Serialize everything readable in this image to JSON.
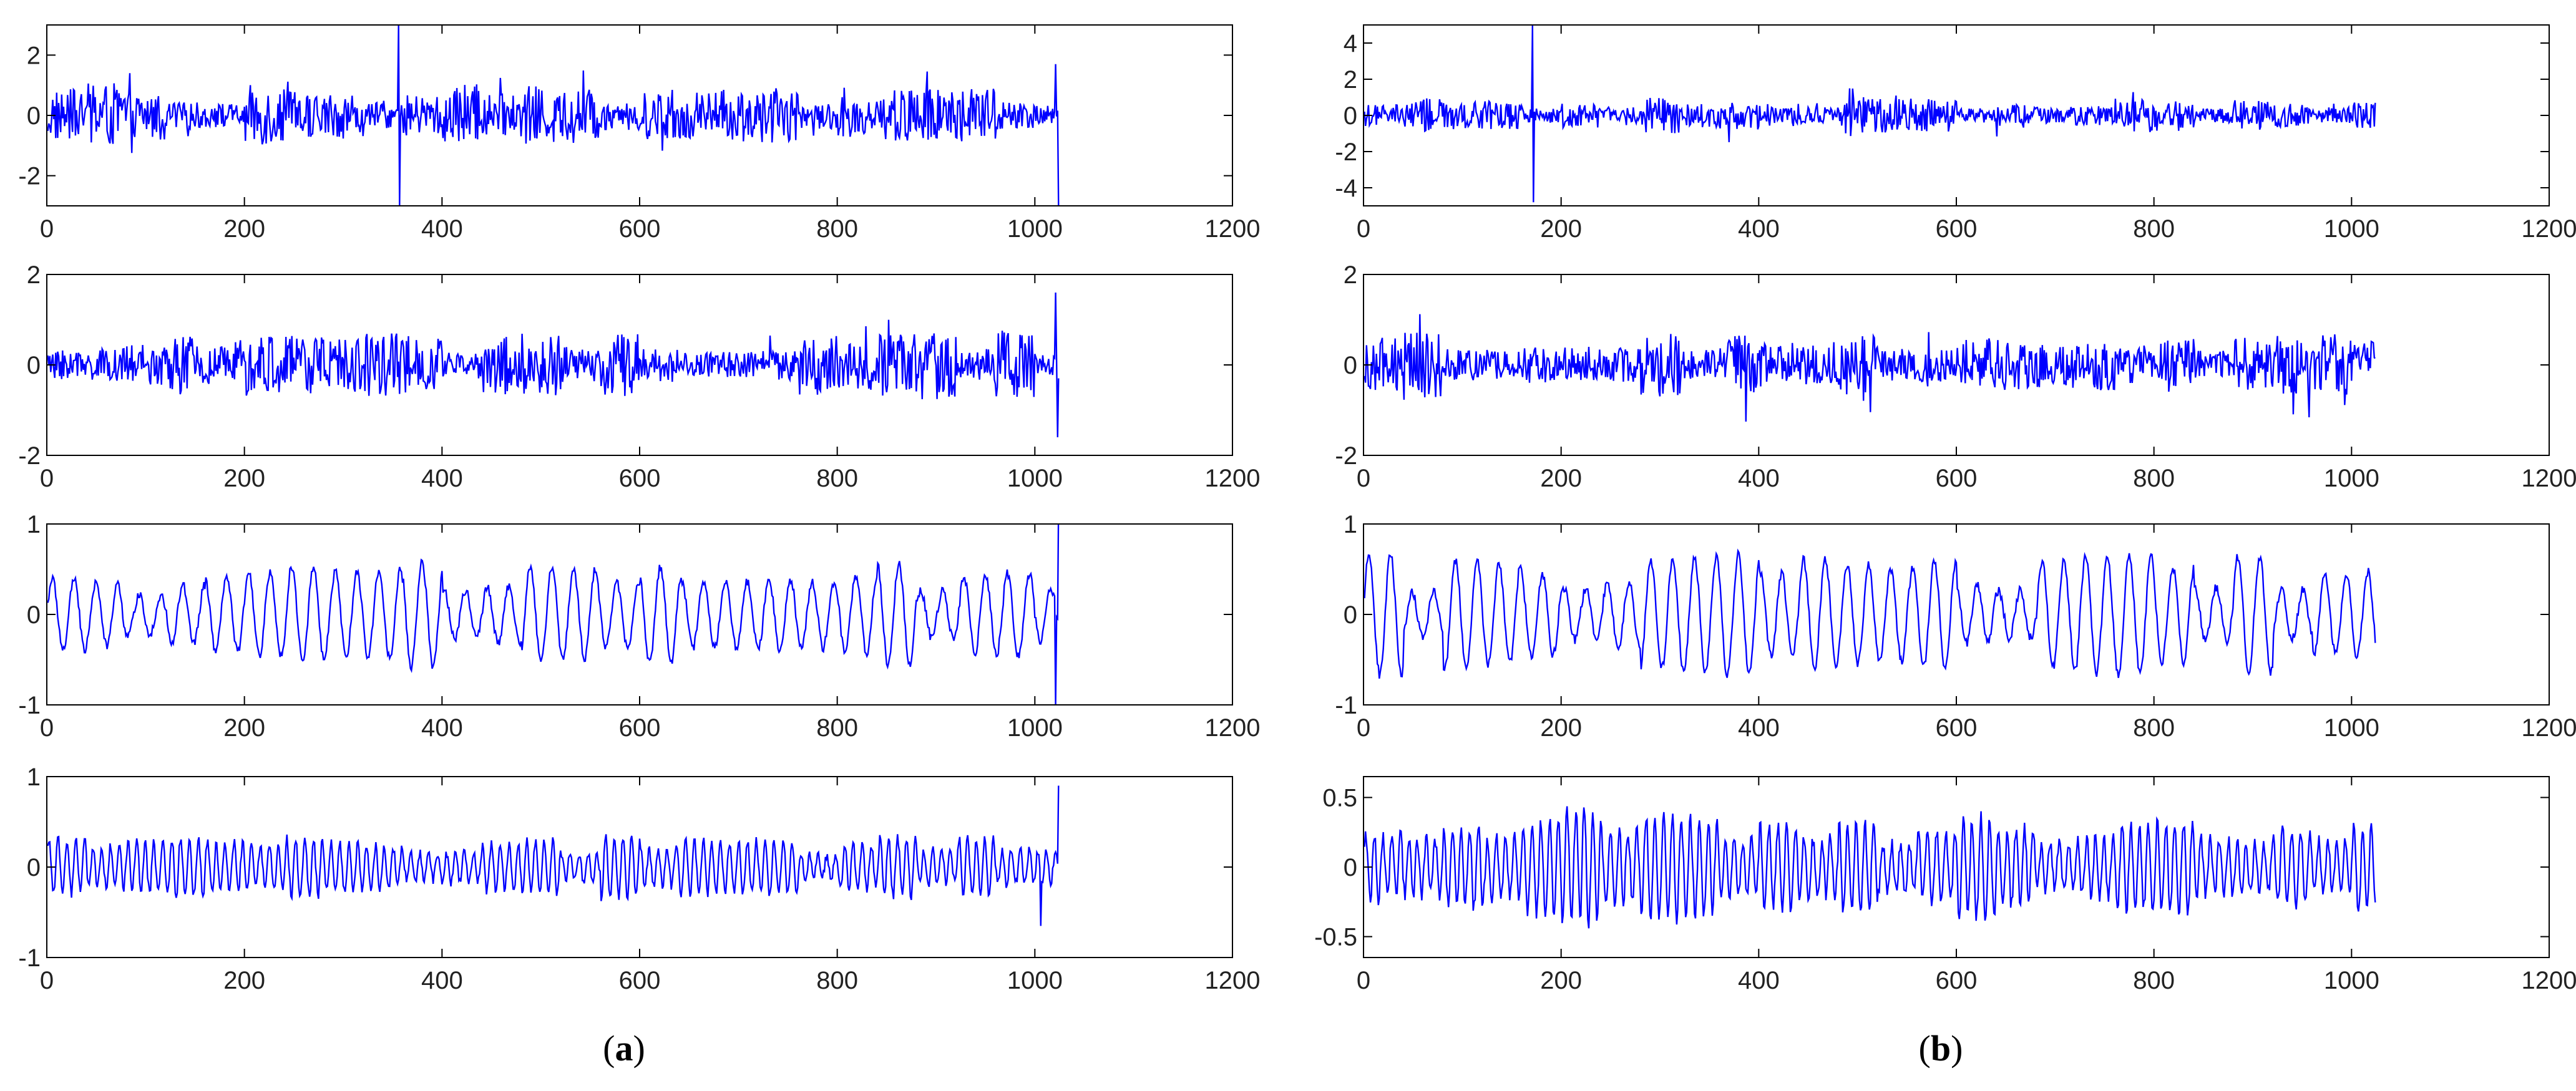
{
  "figure": {
    "captions": [
      {
        "open": "(",
        "letter": "a",
        "close": ")"
      },
      {
        "open": "(",
        "letter": "b",
        "close": ")"
      }
    ],
    "line_color": "#0000ff"
  },
  "chart_data": [
    {
      "id": "a1",
      "type": "line",
      "column": "a",
      "row": 0,
      "xlim": [
        0,
        1200
      ],
      "ylim": [
        -3,
        3
      ],
      "xticks": [
        0,
        200,
        400,
        600,
        800,
        1000,
        1200
      ],
      "yticks": [
        -2,
        0,
        2
      ],
      "n_points": 1024,
      "amplitude_typical": 0.8,
      "peak": 3.0,
      "spikes": [
        {
          "x": 355,
          "y": 3.0
        },
        {
          "x": 356,
          "y": -3.0
        },
        {
          "x": 1020,
          "y": 1.7
        },
        {
          "x": 1023,
          "y": -3.0
        }
      ],
      "series": [
        {
          "name": "",
          "color": "#0000ff"
        }
      ]
    },
    {
      "id": "a2",
      "type": "line",
      "column": "a",
      "row": 1,
      "xlim": [
        0,
        1200
      ],
      "ylim": [
        -2,
        2
      ],
      "xticks": [
        0,
        200,
        400,
        600,
        800,
        1000,
        1200
      ],
      "yticks": [
        -2,
        0,
        2
      ],
      "n_points": 1024,
      "amplitude_typical": 0.6,
      "peak": 1.6,
      "spikes": [
        {
          "x": 1020,
          "y": 1.6
        },
        {
          "x": 1022,
          "y": -1.6
        }
      ],
      "series": [
        {
          "name": "",
          "color": "#0000ff"
        }
      ]
    },
    {
      "id": "a3",
      "type": "line",
      "column": "a",
      "row": 2,
      "xlim": [
        0,
        1200
      ],
      "ylim": [
        -1,
        1
      ],
      "xticks": [
        0,
        200,
        400,
        600,
        800,
        1000,
        1200
      ],
      "yticks": [
        -1,
        0,
        1
      ],
      "n_points": 1024,
      "amplitude_typical": 0.45,
      "peak": 0.8,
      "spikes": [
        {
          "x": 1020,
          "y": -1.0
        },
        {
          "x": 1024,
          "y": 1.2
        }
      ],
      "series": [
        {
          "name": "",
          "color": "#0000ff"
        }
      ]
    },
    {
      "id": "a4",
      "type": "line",
      "column": "a",
      "row": 3,
      "xlim": [
        0,
        1200
      ],
      "ylim": [
        -1,
        1
      ],
      "xticks": [
        0,
        200,
        400,
        600,
        800,
        1000,
        1200
      ],
      "yticks": [
        -1,
        0,
        1
      ],
      "n_points": 1024,
      "amplitude_typical": 0.25,
      "peak": 0.65,
      "spikes": [
        {
          "x": 1005,
          "y": -0.65
        },
        {
          "x": 1024,
          "y": 0.9
        }
      ],
      "series": [
        {
          "name": "",
          "color": "#0000ff"
        }
      ]
    },
    {
      "id": "b1",
      "type": "line",
      "column": "b",
      "row": 0,
      "xlim": [
        0,
        1200
      ],
      "ylim": [
        -5,
        5
      ],
      "xticks": [
        0,
        200,
        400,
        600,
        800,
        1000,
        1200
      ],
      "yticks": [
        -4,
        -2,
        0,
        2,
        4
      ],
      "n_points": 1024,
      "amplitude_typical": 0.9,
      "peak": 2.5,
      "spikes": [
        {
          "x": 170,
          "y": 5.0
        },
        {
          "x": 171,
          "y": -4.8
        }
      ],
      "series": [
        {
          "name": "",
          "color": "#0000ff"
        }
      ]
    },
    {
      "id": "b2",
      "type": "line",
      "column": "b",
      "row": 1,
      "xlim": [
        0,
        1200
      ],
      "ylim": [
        -2,
        2
      ],
      "xticks": [
        0,
        200,
        400,
        600,
        800,
        1000,
        1200
      ],
      "yticks": [
        -2,
        0,
        2
      ],
      "n_points": 1024,
      "amplitude_typical": 0.6,
      "peak": 1.6,
      "spikes": [],
      "series": [
        {
          "name": "",
          "color": "#0000ff"
        }
      ]
    },
    {
      "id": "b3",
      "type": "line",
      "column": "b",
      "row": 2,
      "xlim": [
        0,
        1200
      ],
      "ylim": [
        -1,
        1
      ],
      "xticks": [
        0,
        200,
        400,
        600,
        800,
        1000,
        1200
      ],
      "yticks": [
        -1,
        0,
        1
      ],
      "n_points": 1024,
      "amplitude_typical": 0.5,
      "peak": 0.85,
      "spikes": [],
      "series": [
        {
          "name": "",
          "color": "#0000ff"
        }
      ]
    },
    {
      "id": "b4",
      "type": "line",
      "column": "b",
      "row": 3,
      "xlim": [
        0,
        1200
      ],
      "ylim": [
        -0.65,
        0.65
      ],
      "xticks": [
        0,
        200,
        400,
        600,
        800,
        1000,
        1200
      ],
      "yticks": [
        -0.5,
        0,
        0.5
      ],
      "n_points": 1024,
      "amplitude_typical": 0.3,
      "peak": 0.65,
      "spikes": [],
      "series": [
        {
          "name": "",
          "color": "#0000ff"
        }
      ]
    }
  ]
}
